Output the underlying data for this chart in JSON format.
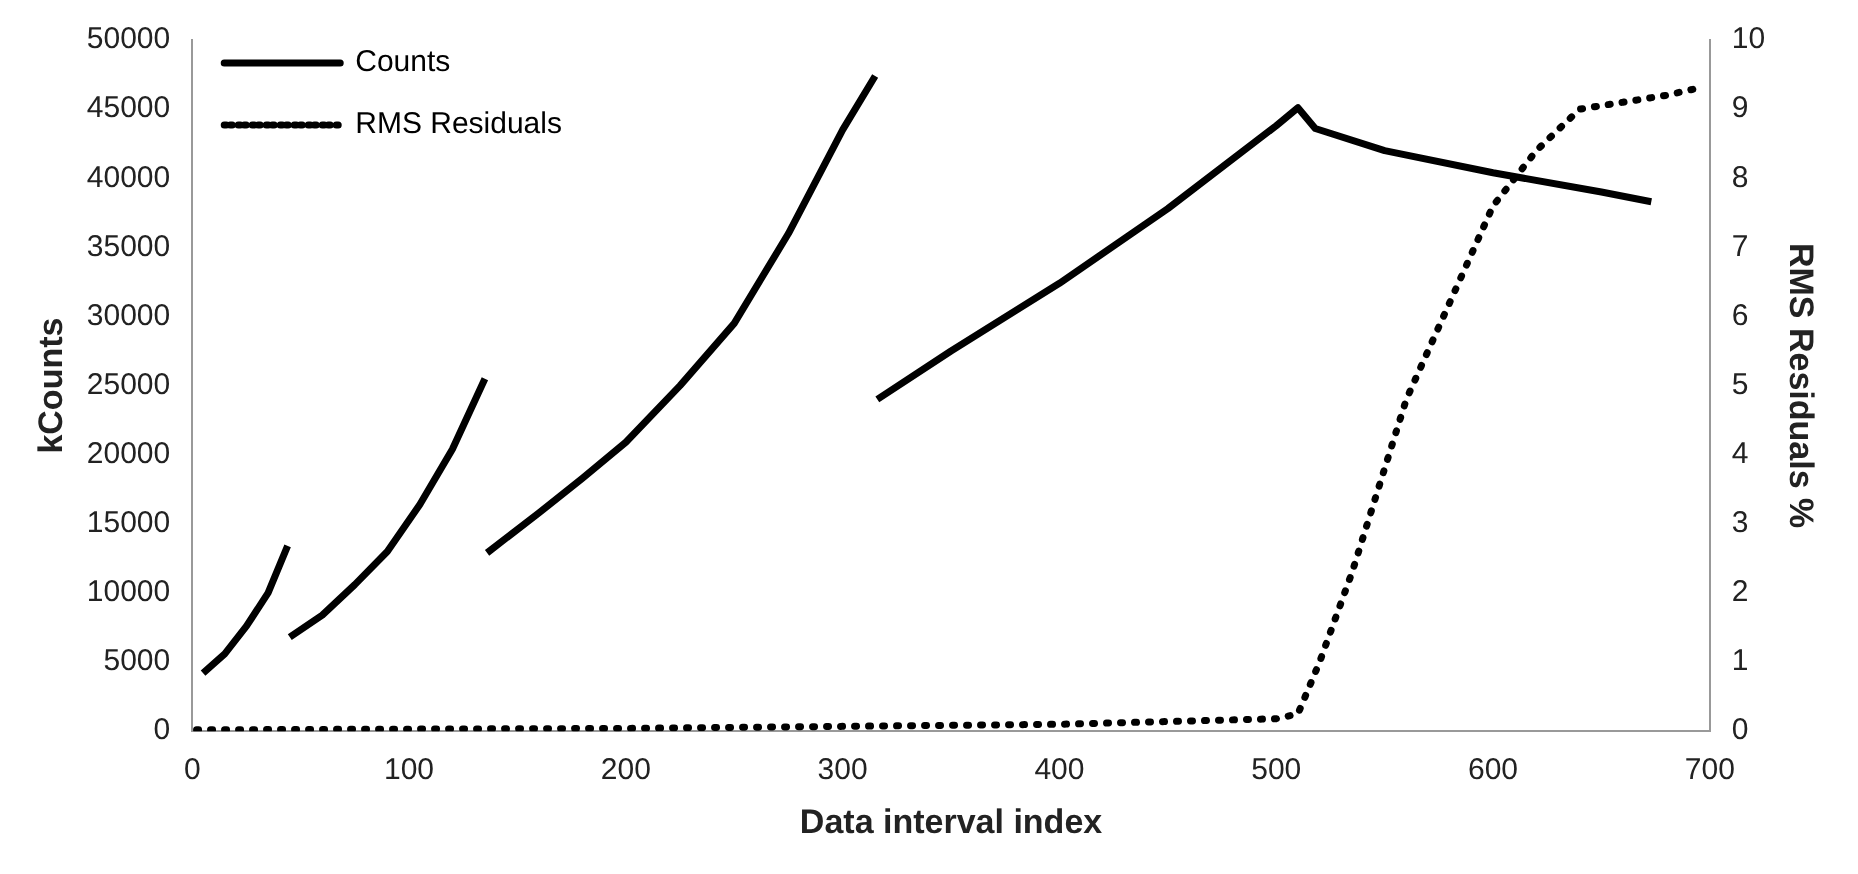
{
  "chart_data": {
    "type": "line",
    "xlabel": "Data interval index",
    "ylabel": "kCounts",
    "y2label": "RMS Residuals %",
    "xlim": [
      0,
      700
    ],
    "xticks": [
      0,
      100,
      200,
      300,
      400,
      500,
      600,
      700
    ],
    "ylim": [
      0,
      50000
    ],
    "yticks": [
      0,
      5000,
      10000,
      15000,
      20000,
      25000,
      30000,
      35000,
      40000,
      45000,
      50000
    ],
    "y2lim": [
      0,
      10
    ],
    "y2ticks": [
      0,
      1,
      2,
      3,
      4,
      5,
      6,
      7,
      8,
      9,
      10
    ],
    "grid": false,
    "legend": "top left",
    "marker": "none",
    "series": [
      {
        "name": "Counts",
        "color": "#000000",
        "line_style": "solid",
        "x": [
          5,
          15,
          25,
          35,
          44,
          44.5,
          45,
          60,
          75,
          90,
          105,
          120,
          135,
          135.5,
          136,
          160,
          180,
          200,
          225,
          250,
          275,
          300,
          315,
          315.5,
          316,
          350,
          400,
          450,
          500,
          510,
          518,
          550,
          600,
          650,
          673
        ],
        "values": [
          4200,
          5600,
          7600,
          10000,
          13400,
          null,
          6800,
          8400,
          10600,
          13000,
          16400,
          20400,
          25500,
          null,
          12900,
          15800,
          18300,
          20900,
          25000,
          29500,
          36000,
          43500,
          47400,
          null,
          24000,
          27500,
          32400,
          37800,
          43800,
          45100,
          43600,
          42000,
          40400,
          39000,
          38300
        ]
      },
      {
        "name": "RMS Residuals",
        "color": "#000000",
        "line_style": "dotted",
        "axis": "y2",
        "x": [
          2,
          100,
          200,
          300,
          400,
          500,
          510,
          520,
          535,
          550,
          560,
          580,
          600,
          620,
          640,
          660,
          680,
          694
        ],
        "values": [
          0.02,
          0.03,
          0.04,
          0.07,
          0.1,
          0.18,
          0.25,
          1.0,
          2.3,
          3.8,
          4.8,
          6.2,
          7.6,
          8.4,
          9.0,
          9.1,
          9.2,
          9.3
        ]
      }
    ]
  }
}
